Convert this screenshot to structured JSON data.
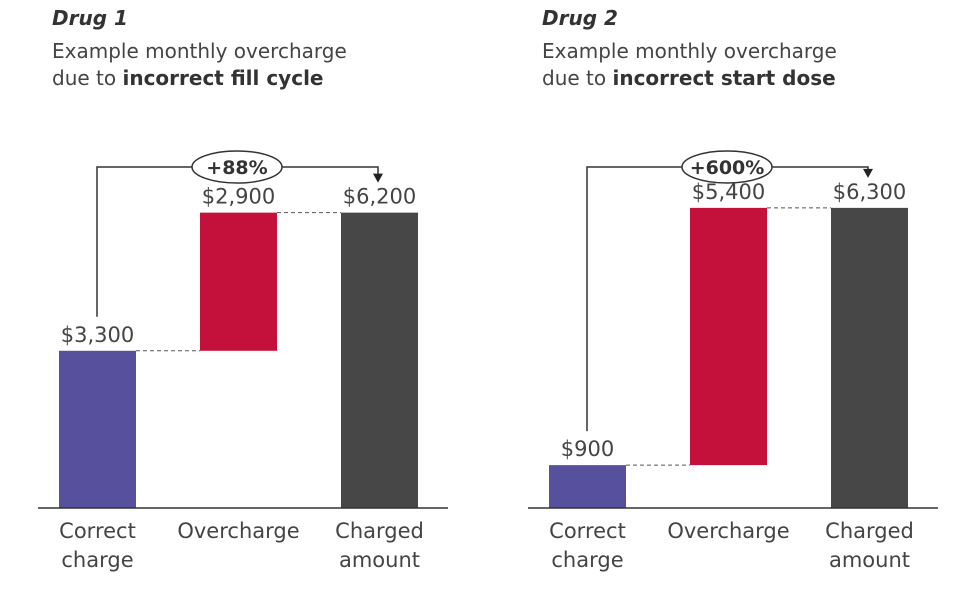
{
  "chart_data": [
    {
      "type": "waterfall",
      "title": "Drug 1",
      "subtitle": {
        "prefix": "Example monthly overcharge",
        "line2_prefix": "due to ",
        "emphasis": "incorrect fill cycle"
      },
      "categories": [
        "Correct\ncharge",
        "Overcharge",
        "Charged\namount"
      ],
      "values": [
        3300,
        2900,
        6200
      ],
      "value_labels": [
        "$3,300",
        "$2,900",
        "$6,200"
      ],
      "annotation": "+88%",
      "ylim": [
        0,
        7200
      ],
      "colors": [
        "#57509c",
        "#c4113c",
        "#474748"
      ]
    },
    {
      "type": "waterfall",
      "title": "Drug 2",
      "subtitle": {
        "prefix": "Example monthly overcharge",
        "line2_prefix": "due to ",
        "emphasis": "incorrect start dose"
      },
      "categories": [
        "Correct\ncharge",
        "Overcharge",
        "Charged\namount"
      ],
      "values": [
        900,
        5400,
        6300
      ],
      "value_labels": [
        "$900",
        "$5,400",
        "$6,300"
      ],
      "annotation": "+600%",
      "ylim": [
        0,
        7200
      ],
      "colors": [
        "#57509c",
        "#c4113c",
        "#474748"
      ]
    }
  ]
}
